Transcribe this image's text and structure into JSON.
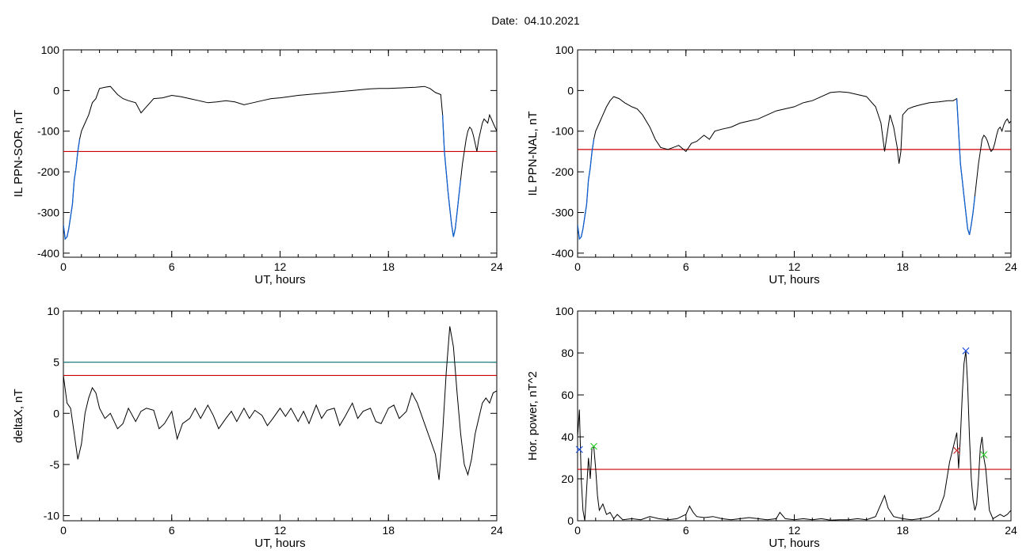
{
  "header": {
    "date_label": "Date:",
    "date_value": "04.10.2021"
  },
  "colors": {
    "trace": "#000000",
    "threshold": "#cc0000",
    "highlight": "#1060d0",
    "cyan_line": "#208080",
    "marker_blue": "#2050e0",
    "marker_green": "#30d030",
    "marker_red": "#d03030"
  },
  "chart_data": [
    {
      "id": "il_sor",
      "type": "line",
      "title": "",
      "xlabel": "UT, hours",
      "ylabel": "IL PPN-SOR, nT",
      "xlim": [
        0,
        24
      ],
      "ylim": [
        -410,
        100
      ],
      "xticks": [
        0,
        6,
        12,
        18,
        24
      ],
      "yticks": [
        100,
        0,
        -100,
        -200,
        -300,
        -400
      ],
      "threshold": {
        "value": -150,
        "color": "#cc0000"
      },
      "series": [
        {
          "color": "#000000",
          "x": [
            0,
            0.1,
            0.2,
            0.3,
            0.4,
            0.5,
            0.6,
            0.7,
            0.8,
            0.9,
            1.0,
            1.2,
            1.4,
            1.6,
            1.8,
            2.0,
            2.3,
            2.6,
            3.0,
            3.3,
            3.6,
            4.0,
            4.3,
            4.6,
            5.0,
            5.5,
            6.0,
            6.5,
            7.0,
            7.5,
            8.0,
            8.5,
            9.0,
            9.5,
            10.0,
            10.5,
            11.0,
            11.5,
            12.0,
            12.5,
            13.0,
            13.5,
            14.0,
            14.5,
            15.0,
            15.5,
            16.0,
            16.5,
            17.0,
            17.5,
            18.0,
            18.5,
            19.0,
            19.5,
            20.0,
            20.3,
            20.6,
            20.9,
            21.0,
            21.1,
            21.2,
            21.3,
            21.4,
            21.5,
            21.6,
            21.7,
            21.8,
            21.9,
            22.0,
            22.1,
            22.2,
            22.3,
            22.4,
            22.5,
            22.6,
            22.7,
            22.8,
            22.9,
            23.0,
            23.1,
            23.2,
            23.3,
            23.4,
            23.5,
            23.6,
            23.7,
            23.8,
            23.9,
            24.0
          ],
          "y": [
            -330,
            -365,
            -360,
            -340,
            -310,
            -280,
            -220,
            -190,
            -150,
            -120,
            -100,
            -80,
            -60,
            -30,
            -20,
            5,
            8,
            10,
            -10,
            -20,
            -25,
            -30,
            -55,
            -40,
            -20,
            -18,
            -12,
            -15,
            -20,
            -25,
            -30,
            -28,
            -25,
            -28,
            -35,
            -30,
            -25,
            -20,
            -18,
            -15,
            -12,
            -10,
            -8,
            -6,
            -4,
            -2,
            0,
            2,
            4,
            5,
            5,
            6,
            7,
            8,
            10,
            5,
            -5,
            -10,
            -60,
            -150,
            -200,
            -250,
            -290,
            -330,
            -360,
            -340,
            -300,
            -260,
            -220,
            -180,
            -150,
            -120,
            -100,
            -90,
            -95,
            -110,
            -130,
            -150,
            -120,
            -100,
            -80,
            -70,
            -75,
            -80,
            -60,
            -70,
            -80,
            -90,
            -100
          ],
          "highlight_x": [
            [
              0.0,
              0.9
            ],
            [
              21.0,
              22.0
            ]
          ]
        }
      ]
    },
    {
      "id": "il_nal",
      "type": "line",
      "title": "",
      "xlabel": "UT, hours",
      "ylabel": "IL PPN-NAL, nT",
      "xlim": [
        0,
        24
      ],
      "ylim": [
        -410,
        100
      ],
      "xticks": [
        0,
        6,
        12,
        18,
        24
      ],
      "yticks": [
        100,
        0,
        -100,
        -200,
        -300,
        -400
      ],
      "threshold": {
        "value": -145,
        "color": "#cc0000"
      },
      "series": [
        {
          "color": "#000000",
          "x": [
            0,
            0.1,
            0.2,
            0.3,
            0.4,
            0.5,
            0.6,
            0.7,
            0.8,
            0.9,
            1.0,
            1.2,
            1.4,
            1.6,
            1.8,
            2.0,
            2.3,
            2.6,
            3.0,
            3.3,
            3.6,
            4.0,
            4.3,
            4.6,
            5.0,
            5.3,
            5.6,
            6.0,
            6.3,
            6.6,
            7.0,
            7.3,
            7.6,
            8.0,
            8.5,
            9.0,
            9.5,
            10.0,
            10.5,
            11.0,
            11.5,
            12.0,
            12.5,
            13.0,
            13.5,
            14.0,
            14.5,
            15.0,
            15.5,
            16.0,
            16.5,
            16.8,
            17.0,
            17.1,
            17.3,
            17.5,
            17.7,
            17.8,
            17.9,
            18.0,
            18.3,
            18.6,
            19.0,
            19.5,
            20.0,
            20.5,
            20.8,
            21.0,
            21.1,
            21.2,
            21.3,
            21.4,
            21.5,
            21.6,
            21.7,
            21.8,
            21.9,
            22.0,
            22.1,
            22.2,
            22.3,
            22.4,
            22.5,
            22.6,
            22.7,
            22.8,
            22.9,
            23.0,
            23.1,
            23.2,
            23.3,
            23.4,
            23.5,
            23.6,
            23.7,
            23.8,
            23.9,
            24.0
          ],
          "y": [
            -330,
            -365,
            -360,
            -340,
            -310,
            -280,
            -220,
            -190,
            -150,
            -120,
            -100,
            -80,
            -60,
            -40,
            -25,
            -15,
            -20,
            -30,
            -40,
            -45,
            -60,
            -90,
            -120,
            -140,
            -145,
            -140,
            -135,
            -150,
            -130,
            -125,
            -110,
            -120,
            -100,
            -95,
            -90,
            -80,
            -75,
            -70,
            -60,
            -50,
            -45,
            -40,
            -30,
            -25,
            -15,
            -5,
            -3,
            -5,
            -10,
            -15,
            -40,
            -80,
            -150,
            -120,
            -60,
            -90,
            -140,
            -180,
            -150,
            -60,
            -45,
            -40,
            -35,
            -30,
            -28,
            -25,
            -25,
            -20,
            -100,
            -180,
            -220,
            -260,
            -300,
            -340,
            -355,
            -330,
            -300,
            -260,
            -220,
            -180,
            -150,
            -120,
            -110,
            -115,
            -125,
            -140,
            -150,
            -145,
            -130,
            -110,
            -95,
            -90,
            -100,
            -85,
            -75,
            -70,
            -80,
            -75
          ],
          "highlight_x": [
            [
              0.0,
              0.9
            ],
            [
              21.0,
              22.0
            ]
          ]
        }
      ]
    },
    {
      "id": "delta_x",
      "type": "line",
      "title": "",
      "xlabel": "UT, hours",
      "ylabel": "deltaX, nT",
      "xlim": [
        0,
        24
      ],
      "ylim": [
        -10.5,
        10
      ],
      "xticks": [
        0,
        6,
        12,
        18,
        24
      ],
      "yticks": [
        10,
        5,
        0,
        -5,
        -10
      ],
      "threshold": {
        "value": 3.7,
        "color": "#cc0000"
      },
      "secondary_threshold": {
        "value": 5.0,
        "color": "#208080"
      },
      "series": [
        {
          "color": "#000000",
          "x": [
            0,
            0.2,
            0.4,
            0.6,
            0.8,
            1.0,
            1.2,
            1.4,
            1.6,
            1.8,
            2.0,
            2.3,
            2.6,
            3.0,
            3.3,
            3.6,
            4.0,
            4.3,
            4.6,
            5.0,
            5.3,
            5.6,
            6.0,
            6.3,
            6.6,
            7.0,
            7.3,
            7.6,
            8.0,
            8.3,
            8.6,
            9.0,
            9.3,
            9.6,
            10.0,
            10.3,
            10.6,
            11.0,
            11.3,
            11.6,
            12.0,
            12.3,
            12.6,
            13.0,
            13.3,
            13.6,
            14.0,
            14.3,
            14.6,
            15.0,
            15.3,
            15.6,
            16.0,
            16.3,
            16.6,
            17.0,
            17.3,
            17.6,
            18.0,
            18.3,
            18.6,
            19.0,
            19.3,
            19.6,
            20.0,
            20.3,
            20.6,
            20.8,
            21.0,
            21.2,
            21.4,
            21.6,
            21.8,
            22.0,
            22.2,
            22.4,
            22.6,
            22.8,
            23.0,
            23.2,
            23.4,
            23.6,
            23.8,
            24.0
          ],
          "y": [
            3.7,
            1.0,
            0.5,
            -2,
            -4.5,
            -3,
            0,
            1.5,
            2.5,
            2.0,
            0.5,
            -0.5,
            0,
            -1.5,
            -1.0,
            0.5,
            -0.8,
            0.2,
            0.5,
            0.3,
            -1.5,
            -1.0,
            0.2,
            -2.5,
            -1.0,
            -0.5,
            0.5,
            -0.5,
            0.8,
            -0.2,
            -1.5,
            -0.5,
            0.2,
            -0.8,
            0.5,
            -0.5,
            0.3,
            -0.2,
            -1.2,
            -0.5,
            0.5,
            -0.3,
            0.5,
            -0.8,
            0.2,
            -1.0,
            0.8,
            -0.5,
            0.3,
            0.5,
            -1.2,
            -0.3,
            1.0,
            -0.5,
            0.2,
            0.5,
            -0.8,
            -1.0,
            0.5,
            0.8,
            -0.5,
            0.2,
            2.0,
            1.0,
            -1.0,
            -2.5,
            -4.0,
            -6.5,
            -2.0,
            4.0,
            8.5,
            6.5,
            2.0,
            -2.0,
            -5.0,
            -6.0,
            -4.5,
            -2.0,
            -0.5,
            1.0,
            1.5,
            1.0,
            2.0,
            2.2
          ]
        }
      ]
    },
    {
      "id": "hor_power",
      "type": "line",
      "title": "",
      "xlabel": "UT, hours",
      "ylabel": "Hor. power, nT^2",
      "xlim": [
        0,
        24
      ],
      "ylim": [
        0,
        100
      ],
      "xticks": [
        0,
        6,
        12,
        18,
        24
      ],
      "yticks": [
        100,
        80,
        60,
        40,
        20,
        0
      ],
      "threshold": {
        "value": 24.5,
        "color": "#cc0000"
      },
      "markers": [
        {
          "x": 0.1,
          "y": 34,
          "color": "#2050e0"
        },
        {
          "x": 0.9,
          "y": 35.5,
          "color": "#30d030"
        },
        {
          "x": 21.5,
          "y": 81,
          "color": "#2050e0"
        },
        {
          "x": 21.0,
          "y": 33.5,
          "color": "#d03030"
        },
        {
          "x": 22.5,
          "y": 31.5,
          "color": "#30d030"
        }
      ],
      "series": [
        {
          "color": "#000000",
          "x": [
            0,
            0.1,
            0.2,
            0.3,
            0.4,
            0.5,
            0.6,
            0.7,
            0.8,
            0.9,
            1.0,
            1.1,
            1.2,
            1.4,
            1.6,
            1.8,
            2.0,
            2.2,
            2.5,
            3.0,
            3.5,
            4.0,
            4.5,
            5.0,
            5.5,
            6.0,
            6.2,
            6.4,
            6.6,
            7.0,
            7.5,
            8.0,
            8.5,
            9.0,
            9.5,
            10.0,
            10.5,
            11.0,
            11.2,
            11.5,
            12.0,
            12.5,
            13.0,
            13.5,
            14.0,
            14.5,
            15.0,
            15.5,
            16.0,
            16.5,
            16.8,
            17.0,
            17.2,
            17.5,
            18.0,
            18.5,
            19.0,
            19.5,
            20.0,
            20.3,
            20.6,
            20.8,
            21.0,
            21.1,
            21.2,
            21.3,
            21.4,
            21.5,
            21.6,
            21.7,
            21.8,
            21.9,
            22.0,
            22.1,
            22.2,
            22.3,
            22.4,
            22.5,
            22.6,
            22.7,
            22.8,
            22.9,
            23.0,
            23.2,
            23.4,
            23.6,
            23.8,
            24.0
          ],
          "y": [
            40,
            53,
            20,
            5,
            0,
            15,
            30,
            20,
            35,
            35,
            25,
            12,
            5,
            8,
            3,
            4,
            1,
            3,
            0.5,
            1,
            0.5,
            2,
            1,
            0.5,
            1,
            3,
            7,
            4,
            2,
            1.5,
            2,
            1,
            0.5,
            1,
            1.5,
            1,
            0.5,
            1,
            4,
            1,
            0.5,
            1,
            0.5,
            1,
            0.3,
            0.5,
            0.5,
            1,
            0.5,
            2,
            8,
            12,
            6,
            2,
            1,
            0.5,
            1,
            2,
            5,
            12,
            28,
            35,
            42,
            25,
            40,
            60,
            75,
            81,
            65,
            40,
            20,
            10,
            5,
            8,
            20,
            35,
            40,
            30,
            25,
            15,
            5,
            3,
            1,
            2,
            3,
            2,
            3,
            5
          ]
        }
      ]
    }
  ]
}
